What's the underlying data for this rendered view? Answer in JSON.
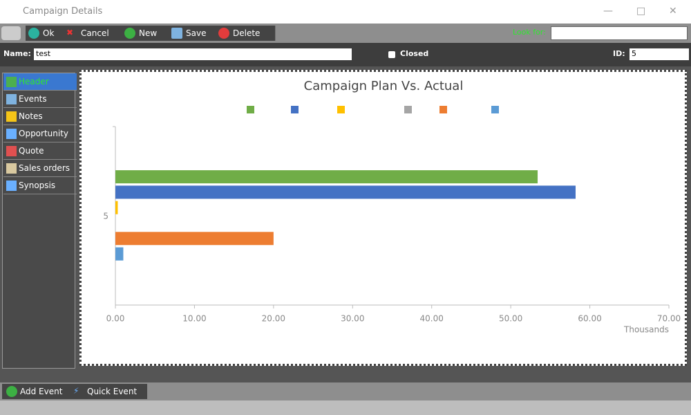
{
  "window": {
    "title": "Campaign Details"
  },
  "toolbar": {
    "buttons": [
      "Ok",
      "Cancel",
      "New",
      "Save",
      "Delete"
    ],
    "look_for": "Look for:"
  },
  "form": {
    "name_label": "Name:",
    "name_value": "test",
    "closed_label": "Closed",
    "id_label": "ID:",
    "id_value": "5"
  },
  "sidebar": {
    "items": [
      "Header",
      "Events",
      "Notes",
      "Opportunity",
      "Quote",
      "Sales orders",
      "Synopsis"
    ]
  },
  "bottom_buttons": [
    "Add Event",
    "Quick Event"
  ],
  "chart_data": {
    "type": "bar",
    "orientation": "horizontal",
    "title": "Campaign Plan Vs. Actual",
    "categories": [
      "5"
    ],
    "series": [
      {
        "color": "#70ad47",
        "values": [
          53.4
        ]
      },
      {
        "color": "#4472c4",
        "values": [
          58.2
        ]
      },
      {
        "color": "#ffc000",
        "values": [
          0.3
        ]
      },
      {
        "color": "#a5a5a5",
        "values": [
          0
        ]
      },
      {
        "color": "#ed7d31",
        "values": [
          20.0
        ]
      },
      {
        "color": "#5b9bd5",
        "values": [
          1.0
        ]
      }
    ],
    "xlim": [
      0,
      70
    ],
    "xticks": [
      {
        "value": 0,
        "label": "0.00"
      },
      {
        "value": 10,
        "label": "10.00"
      },
      {
        "value": 20,
        "label": "20.00"
      },
      {
        "value": 30,
        "label": "30.00"
      },
      {
        "value": 40,
        "label": "40.00"
      },
      {
        "value": 50,
        "label": "50.00"
      },
      {
        "value": 60,
        "label": "60.00"
      },
      {
        "value": 70,
        "label": "70.00"
      }
    ],
    "x_label": "Thousands",
    "grid": false,
    "legend": "top"
  }
}
